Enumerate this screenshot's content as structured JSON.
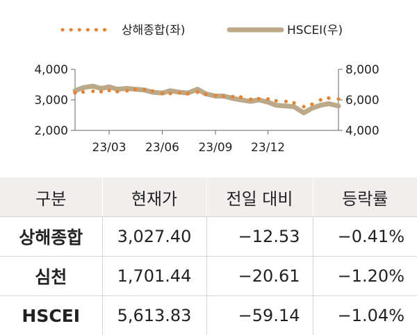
{
  "chart_data": {
    "type": "line",
    "legend": {
      "placement": "top",
      "items": [
        {
          "name": "상해종합(좌)",
          "color": "#e8822e",
          "style": "dotted"
        },
        {
          "name": "HSCEI(우)",
          "color": "#bca98a",
          "style": "solid"
        }
      ]
    },
    "x_tick_labels": [
      "23/03",
      "23/06",
      "23/09",
      "23/12"
    ],
    "x_domain": [
      "2023-01-01",
      "2024-04-01"
    ],
    "x_ticks": [
      "2023-03-01",
      "2023-06-01",
      "2023-09-01",
      "2023-12-01"
    ],
    "y_left": {
      "range": [
        2000,
        4000
      ],
      "ticks": [
        "2,000",
        "3,000",
        "4,000"
      ],
      "tick_values": [
        2000,
        3000,
        4000
      ]
    },
    "y_right": {
      "range": [
        4000,
        8000
      ],
      "ticks": [
        "4,000",
        "6,000",
        "8,000"
      ],
      "tick_values": [
        4000,
        6000,
        8000
      ]
    },
    "grid": false,
    "series": [
      {
        "name": "상해종합(좌)",
        "axis": "left",
        "x": [
          "2023-01-01",
          "2023-01-15",
          "2023-02-01",
          "2023-02-15",
          "2023-03-01",
          "2023-03-15",
          "2023-04-01",
          "2023-04-15",
          "2023-05-01",
          "2023-05-15",
          "2023-06-01",
          "2023-06-15",
          "2023-07-01",
          "2023-07-15",
          "2023-08-01",
          "2023-08-15",
          "2023-09-01",
          "2023-09-15",
          "2023-10-01",
          "2023-10-15",
          "2023-11-01",
          "2023-11-15",
          "2023-12-01",
          "2023-12-15",
          "2024-01-01",
          "2024-01-15",
          "2024-02-01",
          "2024-02-15",
          "2024-03-01",
          "2024-03-15",
          "2024-04-01"
        ],
        "y": [
          3230,
          3260,
          3285,
          3270,
          3310,
          3270,
          3300,
          3340,
          3330,
          3290,
          3220,
          3210,
          3230,
          3200,
          3250,
          3180,
          3140,
          3120,
          3110,
          3090,
          3020,
          3040,
          3030,
          2970,
          2950,
          2900,
          2780,
          2860,
          3000,
          3060,
          3030
        ]
      },
      {
        "name": "HSCEI(우)",
        "axis": "right",
        "x": [
          "2023-01-01",
          "2023-01-15",
          "2023-02-01",
          "2023-02-15",
          "2023-03-01",
          "2023-03-15",
          "2023-04-01",
          "2023-04-15",
          "2023-05-01",
          "2023-05-15",
          "2023-06-01",
          "2023-06-15",
          "2023-07-01",
          "2023-07-15",
          "2023-08-01",
          "2023-08-15",
          "2023-09-01",
          "2023-09-15",
          "2023-10-01",
          "2023-10-15",
          "2023-11-01",
          "2023-11-15",
          "2023-12-01",
          "2023-12-15",
          "2024-01-01",
          "2024-01-15",
          "2024-02-01",
          "2024-02-15",
          "2024-03-01",
          "2024-03-15",
          "2024-04-01"
        ],
        "y": [
          6600,
          6800,
          6900,
          6750,
          6850,
          6700,
          6750,
          6700,
          6650,
          6500,
          6450,
          6600,
          6500,
          6450,
          6700,
          6400,
          6250,
          6250,
          6100,
          6000,
          5900,
          6000,
          5850,
          5650,
          5600,
          5550,
          5150,
          5450,
          5650,
          5750,
          5600
        ]
      }
    ]
  },
  "table": {
    "headers": [
      "구분",
      "현재가",
      "전일 대비",
      "등락률"
    ],
    "rows": [
      {
        "name": "상해종합",
        "price": "3,027.40",
        "change": "−12.53",
        "rate": "−0.41%"
      },
      {
        "name": "심천",
        "price": "1,701.44",
        "change": "−20.61",
        "rate": "−1.20%"
      },
      {
        "name": "HSCEI",
        "price": "5,613.83",
        "change": "−59.14",
        "rate": "−1.04%"
      }
    ]
  }
}
